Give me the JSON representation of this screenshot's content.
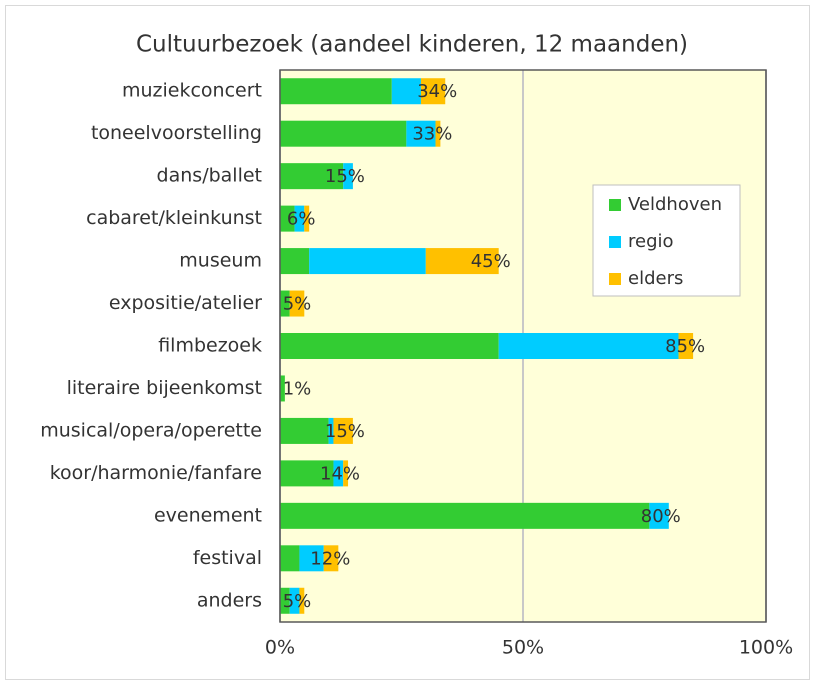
{
  "chart_data": {
    "type": "stacked-barh",
    "title": "Cultuurbezoek (aandeel kinderen, 12 maanden)",
    "categories": [
      "muziekconcert",
      "toneelvoorstelling",
      "dans/ballet",
      "cabaret/kleinkunst",
      "museum",
      "expositie/atelier",
      "filmbezoek",
      "literaire bijeenkomst",
      "musical/opera/operette",
      "koor/harmonie/fanfare",
      "evenement",
      "festival",
      "anders"
    ],
    "series": [
      {
        "name": "Veldhoven",
        "color": "#33cc33",
        "values": [
          23,
          26,
          13,
          3,
          6,
          2,
          45,
          1,
          10,
          11,
          76,
          4,
          2
        ]
      },
      {
        "name": "regio",
        "color": "#00ccff",
        "values": [
          6,
          6,
          2,
          2,
          24,
          0,
          37,
          0,
          1,
          2,
          4,
          5,
          2
        ]
      },
      {
        "name": "elders",
        "color": "#ffc000",
        "values": [
          5,
          1,
          0,
          1,
          15,
          3,
          3,
          0,
          4,
          1,
          0,
          3,
          1
        ]
      }
    ],
    "total_labels": [
      "34%",
      "33%",
      "15%",
      "6%",
      "45%",
      "5%",
      "85%",
      "1%",
      "15%",
      "14%",
      "80%",
      "12%",
      "5%"
    ],
    "xlim": [
      0,
      100
    ],
    "xticks": [
      {
        "value": 0,
        "label": "0%"
      },
      {
        "value": 50,
        "label": "50%"
      },
      {
        "value": 100,
        "label": "100%"
      }
    ],
    "grid": true,
    "legend": "right"
  }
}
